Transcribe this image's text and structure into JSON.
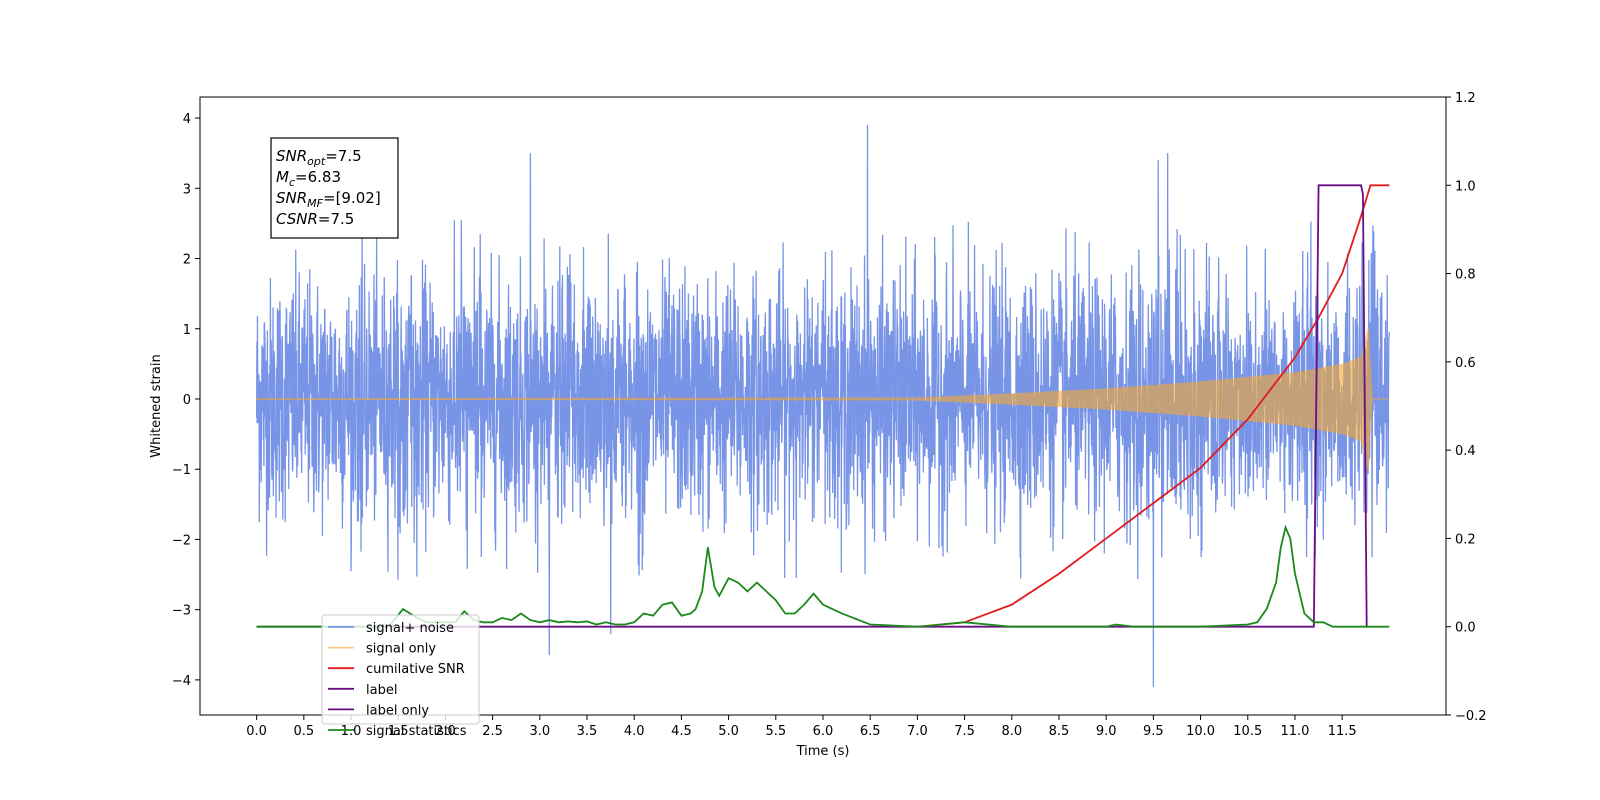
{
  "chart_data": {
    "type": "line",
    "title": "",
    "xlabel": "Time (s)",
    "ylabel_left": "Whitened strain",
    "ylabel_right": "",
    "xlim": [
      -0.6,
      12.6
    ],
    "ylim_left": [
      -4.5,
      4.3
    ],
    "ylim_right": [
      -0.2,
      1.2
    ],
    "x_ticks": [
      0.0,
      0.5,
      1.0,
      1.5,
      2.0,
      2.5,
      3.0,
      3.5,
      4.0,
      4.5,
      5.0,
      5.5,
      6.0,
      6.5,
      7.0,
      7.5,
      8.0,
      8.5,
      9.0,
      9.5,
      10.0,
      10.5,
      11.0,
      11.5
    ],
    "x_tick_labels": [
      "0.0",
      "0.5",
      "1.0",
      "1.5",
      "2.0",
      "2.5",
      "3.0",
      "3.5",
      "4.0",
      "4.5",
      "5.0",
      "5.5",
      "6.0",
      "6.5",
      "7.0",
      "7.5",
      "8.0",
      "8.5",
      "9.0",
      "9.5",
      "10.0",
      "10.5",
      "11.0",
      "11.5"
    ],
    "y_left_ticks": [
      -4,
      -3,
      -2,
      -1,
      0,
      1,
      2,
      3,
      4
    ],
    "y_left_tick_labels": [
      "−4",
      "−3",
      "−2",
      "−1",
      "0",
      "1",
      "2",
      "3",
      "4"
    ],
    "y_right_ticks": [
      -0.2,
      0.0,
      0.2,
      0.4,
      0.6,
      0.8,
      1.0,
      1.2
    ],
    "y_right_tick_labels": [
      "−0.2",
      "0.0",
      "0.2",
      "0.4",
      "0.6",
      "0.8",
      "1.0",
      "1.2"
    ],
    "grid": false,
    "legend_position": "lower-left",
    "annotation": {
      "lines": [
        {
          "base": "SNR",
          "sub": "opt",
          "rest": "=7.5"
        },
        {
          "base": "M",
          "sub": "c",
          "rest": "=6.83"
        },
        {
          "base": "SNR",
          "sub": "MF",
          "rest": "=[9.02]"
        },
        {
          "base": "CSNR",
          "sub": "",
          "rest": "=7.5"
        }
      ]
    },
    "series": [
      {
        "name": "signal+ noise",
        "axis": "left",
        "color": "#7894e6",
        "kind": "noise",
        "x_range": [
          0.0,
          12.0
        ],
        "amplitude_typical": 1.3,
        "peaks": [
          {
            "x": 6.47,
            "y": 3.9
          },
          {
            "x": 2.9,
            "y": 3.5
          },
          {
            "x": 9.65,
            "y": 3.5
          },
          {
            "x": 9.55,
            "y": 3.4
          },
          {
            "x": 9.5,
            "y": -4.1
          },
          {
            "x": 3.1,
            "y": -3.65
          },
          {
            "x": 3.75,
            "y": -3.35
          }
        ]
      },
      {
        "name": "signal only",
        "axis": "left",
        "color": "#f5a830",
        "kind": "chirp",
        "x_range": [
          0.0,
          12.0
        ],
        "envelope": [
          [
            0.0,
            0.01
          ],
          [
            7.0,
            0.02
          ],
          [
            8.0,
            0.08
          ],
          [
            9.0,
            0.15
          ],
          [
            10.0,
            0.25
          ],
          [
            11.0,
            0.38
          ],
          [
            11.5,
            0.5
          ],
          [
            11.7,
            0.6
          ],
          [
            11.78,
            1.05
          ],
          [
            11.82,
            0.0
          ],
          [
            12.0,
            0.0
          ]
        ]
      },
      {
        "name": "cumilative SNR",
        "axis": "right",
        "color": "#e31a1c",
        "x": [
          7.0,
          7.5,
          8.0,
          8.5,
          9.0,
          9.5,
          10.0,
          10.5,
          11.0,
          11.25,
          11.5,
          11.7,
          11.8,
          12.0
        ],
        "y": [
          0.0,
          0.01,
          0.05,
          0.12,
          0.2,
          0.28,
          0.36,
          0.47,
          0.61,
          0.7,
          0.8,
          0.93,
          1.0,
          1.0
        ]
      },
      {
        "name": "label",
        "axis": "right",
        "color": "#6a0d83",
        "x": [
          0.0,
          11.2,
          11.25,
          11.7,
          11.72,
          11.76,
          11.77
        ],
        "y": [
          0.0,
          0.0,
          1.0,
          1.0,
          0.98,
          0.0,
          0.0
        ]
      },
      {
        "name": "label only",
        "axis": "right",
        "color": "#6a0d83",
        "hidden": true,
        "x": [],
        "y": []
      },
      {
        "name": "signal statistics",
        "axis": "right",
        "color": "#1b8a1b",
        "x": [
          0.0,
          1.0,
          1.4,
          1.55,
          1.7,
          1.8,
          2.0,
          2.1,
          2.2,
          2.3,
          2.4,
          2.5,
          2.6,
          2.7,
          2.8,
          2.9,
          3.0,
          3.1,
          3.2,
          3.3,
          3.4,
          3.5,
          3.6,
          3.7,
          3.8,
          3.9,
          4.0,
          4.1,
          4.2,
          4.3,
          4.4,
          4.5,
          4.6,
          4.65,
          4.72,
          4.78,
          4.85,
          4.9,
          5.0,
          5.1,
          5.2,
          5.3,
          5.4,
          5.5,
          5.6,
          5.7,
          5.8,
          5.9,
          6.0,
          6.1,
          6.2,
          6.5,
          7.0,
          7.5,
          8.0,
          9.0,
          9.1,
          9.3,
          10.0,
          10.5,
          10.6,
          10.7,
          10.8,
          10.85,
          10.9,
          10.95,
          11.0,
          11.1,
          11.2,
          11.3,
          11.4,
          11.6,
          12.0
        ],
        "y": [
          0.0,
          0.0,
          0.0,
          0.04,
          0.02,
          0.01,
          0.01,
          0.01,
          0.035,
          0.015,
          0.01,
          0.01,
          0.02,
          0.015,
          0.03,
          0.015,
          0.01,
          0.015,
          0.01,
          0.012,
          0.01,
          0.012,
          0.005,
          0.01,
          0.005,
          0.005,
          0.01,
          0.03,
          0.025,
          0.05,
          0.055,
          0.025,
          0.03,
          0.04,
          0.08,
          0.18,
          0.09,
          0.07,
          0.11,
          0.1,
          0.08,
          0.1,
          0.08,
          0.06,
          0.03,
          0.03,
          0.05,
          0.075,
          0.05,
          0.04,
          0.03,
          0.005,
          0.0,
          0.01,
          0.0,
          0.0,
          0.005,
          0.0,
          0.0,
          0.005,
          0.01,
          0.04,
          0.1,
          0.18,
          0.225,
          0.2,
          0.12,
          0.03,
          0.01,
          0.01,
          0.0,
          0.0,
          0.0
        ]
      }
    ]
  }
}
